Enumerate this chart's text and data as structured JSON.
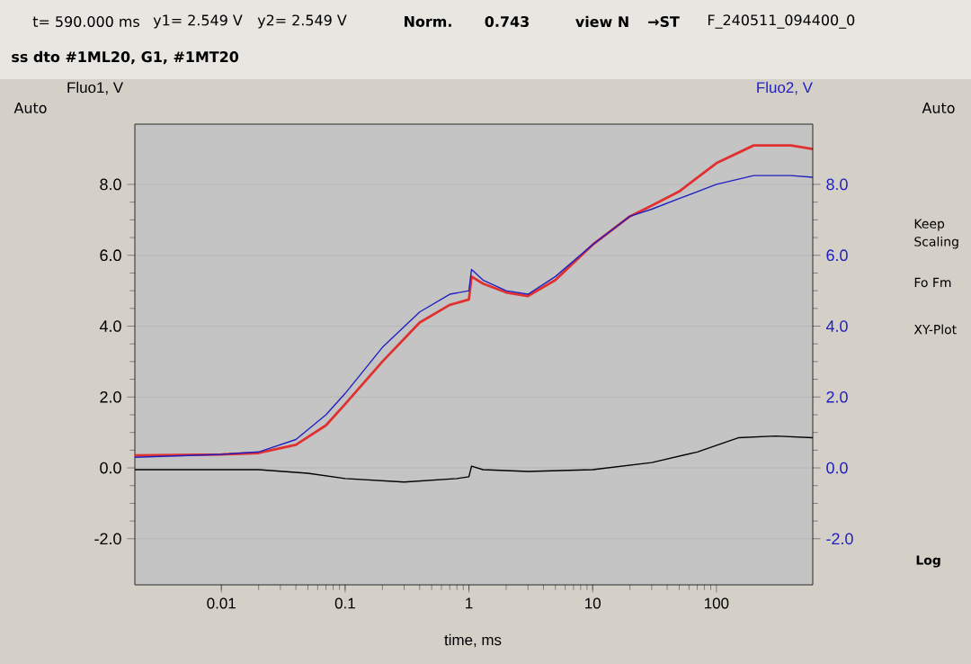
{
  "chart_data": {
    "type": "line",
    "xlabel": "time, ms",
    "ylabel": "Fluo1, V",
    "y2label": "Fluo2, V",
    "log": "x",
    "grid": "y",
    "xlim": [
      0.002,
      600
    ],
    "xticks": [
      0.01,
      0.1,
      1,
      10,
      100
    ],
    "ylim": [
      -3.3,
      9.7
    ],
    "yticks": [
      {
        "value": -2,
        "label": "-2.0"
      },
      {
        "value": 0,
        "label": "0.0"
      },
      {
        "value": 2,
        "label": "2.0"
      },
      {
        "value": 4,
        "label": "4.0"
      },
      {
        "value": 6,
        "label": "6.0"
      },
      {
        "value": 8,
        "label": "8.0"
      }
    ],
    "y2lim": [
      -3.3,
      9.7
    ],
    "y2ticks": [
      {
        "value": -2,
        "label": "-2.0"
      },
      {
        "value": 0,
        "label": "0.0"
      },
      {
        "value": 2,
        "label": "2.0"
      },
      {
        "value": 4,
        "label": "4.0"
      },
      {
        "value": 6,
        "label": "6.0"
      },
      {
        "value": 8,
        "label": "8.0"
      }
    ],
    "series": [
      {
        "color": "#e03030",
        "x": [
          0.002,
          0.01,
          0.02,
          0.04,
          0.07,
          0.1,
          0.2,
          0.4,
          0.7,
          1.0,
          1.05,
          1.3,
          2,
          3,
          5,
          10,
          20,
          30,
          50,
          100,
          200,
          400,
          600
        ],
        "values": [
          0.35,
          0.38,
          0.42,
          0.65,
          1.2,
          1.8,
          3.0,
          4.1,
          4.6,
          4.75,
          5.4,
          5.2,
          4.95,
          4.85,
          5.3,
          6.3,
          7.1,
          7.4,
          7.8,
          8.6,
          9.1,
          9.1,
          9.0
        ]
      },
      {
        "color": "#2020c0",
        "axis": "y2",
        "x": [
          0.002,
          0.01,
          0.02,
          0.04,
          0.07,
          0.1,
          0.2,
          0.4,
          0.7,
          1.0,
          1.05,
          1.3,
          2,
          3,
          5,
          10,
          20,
          30,
          50,
          100,
          200,
          400,
          600
        ],
        "values": [
          0.3,
          0.38,
          0.45,
          0.8,
          1.5,
          2.1,
          3.4,
          4.4,
          4.9,
          5.0,
          5.6,
          5.3,
          5.0,
          4.9,
          5.4,
          6.3,
          7.1,
          7.3,
          7.6,
          8.0,
          8.25,
          8.25,
          8.2
        ]
      },
      {
        "color": "#000000",
        "x": [
          0.002,
          0.02,
          0.05,
          0.1,
          0.3,
          0.8,
          1.0,
          1.05,
          1.3,
          3,
          10,
          30,
          70,
          150,
          300,
          600
        ],
        "values": [
          -0.05,
          -0.05,
          -0.15,
          -0.3,
          -0.4,
          -0.3,
          -0.25,
          0.05,
          -0.05,
          -0.1,
          -0.05,
          0.15,
          0.45,
          0.85,
          0.9,
          0.85
        ]
      }
    ],
    "annotations": [
      "t= 590.000 ms",
      "y1= 2.549 V",
      "y2= 2.549 V",
      "Norm.",
      "0.743",
      "view N",
      "→ST",
      "F_240511_094400_0",
      "ss dto #1ML20, G1, #1MT20",
      "Auto",
      "Auto",
      "Keep Scaling",
      "Fo Fm",
      "XY-Plot",
      "Log"
    ]
  }
}
